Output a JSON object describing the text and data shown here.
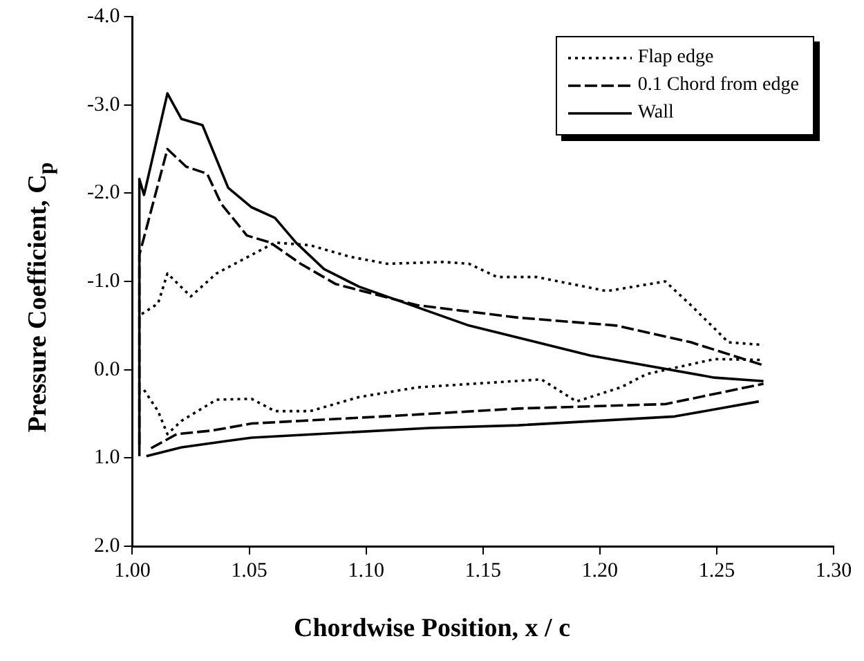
{
  "chart_data": {
    "type": "line",
    "xlabel": "Chordwise Position,  x / c",
    "ylabel": "Pressure Coefficient, C$_{p}$",
    "xlim": [
      1.0,
      1.3
    ],
    "xticks": [
      {
        "value": 1.0,
        "label": "1.00"
      },
      {
        "value": 1.05,
        "label": "1.05"
      },
      {
        "value": 1.1,
        "label": "1.10"
      },
      {
        "value": 1.15,
        "label": "1.15"
      },
      {
        "value": 1.2,
        "label": "1.20"
      },
      {
        "value": 1.25,
        "label": "1.25"
      },
      {
        "value": 1.3,
        "label": "1.30"
      }
    ],
    "ylim": [
      2.0,
      -4.0
    ],
    "yticks": [
      {
        "value": -4.0,
        "label": "-4.0"
      },
      {
        "value": -3.0,
        "label": "-3.0"
      },
      {
        "value": -2.0,
        "label": "-2.0"
      },
      {
        "value": -1.0,
        "label": "-1.0"
      },
      {
        "value": 0.0,
        "label": "0.0"
      },
      {
        "value": 1.0,
        "label": "1.0"
      },
      {
        "value": 2.0,
        "label": "2.0"
      }
    ],
    "legend": "top right",
    "series": [
      {
        "name": "Flap edge",
        "color": "#000000",
        "line_style": "dotted",
        "x": [
          1.004,
          1.011,
          1.015,
          1.025,
          1.036,
          1.051,
          1.061,
          1.076,
          1.093,
          1.109,
          1.133,
          1.144,
          1.156,
          1.173,
          1.203,
          1.228,
          1.239,
          1.255,
          1.27
        ],
        "values": [
          -0.63,
          -0.75,
          -1.09,
          -0.83,
          -1.09,
          -1.3,
          -1.44,
          -1.41,
          -1.28,
          -1.2,
          -1.22,
          -1.2,
          -1.05,
          -1.05,
          -0.89,
          -1.0,
          -0.73,
          -0.31,
          -0.28
        ]
      },
      {
        "name": "0.1 Chord from edge",
        "color": "#000000",
        "line_style": "dashed",
        "x": [
          1.003,
          1.003,
          1.015,
          1.023,
          1.032,
          1.038,
          1.049,
          1.059,
          1.072,
          1.087,
          1.103,
          1.122,
          1.165,
          1.207,
          1.239,
          1.27
        ],
        "values": [
          0.85,
          -1.3,
          -2.5,
          -2.3,
          -2.22,
          -1.88,
          -1.52,
          -1.44,
          -1.2,
          -0.97,
          -0.86,
          -0.73,
          -0.59,
          -0.5,
          -0.31,
          -0.05
        ]
      },
      {
        "name": "Wall",
        "color": "#000000",
        "line_style": "solid",
        "x": [
          1.003,
          1.003,
          1.005,
          1.015,
          1.021,
          1.03,
          1.041,
          1.051,
          1.061,
          1.07,
          1.082,
          1.097,
          1.144,
          1.196,
          1.249,
          1.27
        ],
        "values": [
          0.98,
          -2.16,
          -1.98,
          -3.13,
          -2.84,
          -2.77,
          -2.06,
          -1.84,
          -1.72,
          -1.44,
          -1.14,
          -0.94,
          -0.5,
          -0.16,
          0.09,
          0.13
        ]
      },
      {
        "color": "#000000",
        "line_style": "dotted",
        "x": [
          1.005,
          1.011,
          1.015,
          1.021,
          1.036,
          1.051,
          1.061,
          1.076,
          1.097,
          1.122,
          1.175,
          1.19,
          1.209,
          1.22,
          1.249,
          1.27
        ],
        "values": [
          0.23,
          0.47,
          0.73,
          0.58,
          0.34,
          0.33,
          0.47,
          0.47,
          0.31,
          0.2,
          0.11,
          0.36,
          0.2,
          0.05,
          -0.12,
          -0.11
        ]
      },
      {
        "color": "#000000",
        "line_style": "dashed",
        "x": [
          1.008,
          1.019,
          1.034,
          1.051,
          1.072,
          1.114,
          1.165,
          1.228,
          1.27
        ],
        "values": [
          0.89,
          0.73,
          0.69,
          0.61,
          0.58,
          0.52,
          0.44,
          0.39,
          0.16
        ]
      },
      {
        "color": "#000000",
        "line_style": "solid",
        "x": [
          1.006,
          1.021,
          1.04,
          1.051,
          1.127,
          1.165,
          1.232,
          1.268
        ],
        "values": [
          0.98,
          0.88,
          0.81,
          0.77,
          0.66,
          0.63,
          0.53,
          0.36
        ]
      }
    ]
  }
}
